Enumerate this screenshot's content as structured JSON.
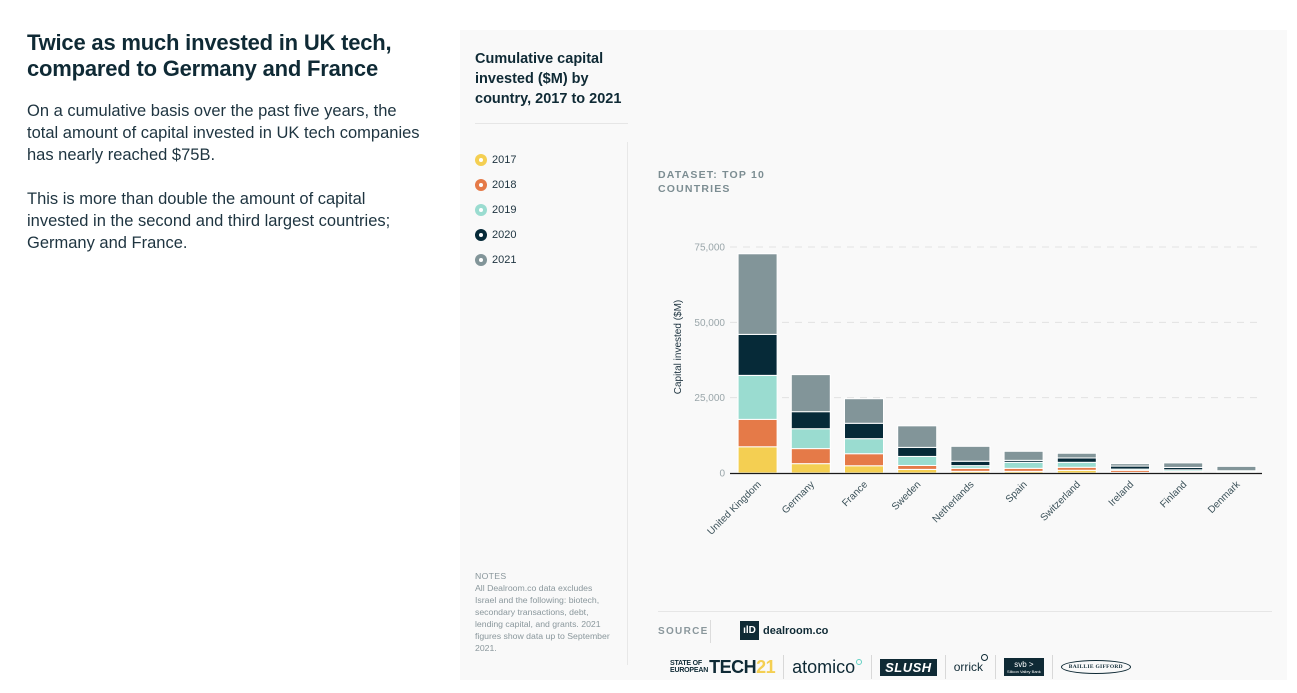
{
  "intro": {
    "headline": "Twice as much invested in UK tech, compared to Germany and France",
    "paragraphs": [
      "On a cumulative basis over the past five years, the total amount of capital invested in UK tech companies has nearly reached $75B.",
      "This is more than double the amount of capital invested in the second and third largest countries; Germany and France."
    ]
  },
  "card": {
    "title": "Cumulative capital invested ($M) by country, 2017 to 2021",
    "dataset_label": "Dataset: Top 10 Countries",
    "notes_heading": "Notes",
    "notes_text": "All Dealroom.co data excludes Israel and the following: biotech, secondary transactions, debt, lending capital, and grants. 2021 figures show data up to September 2021.",
    "source_label": "Source",
    "source_name": "dealroom.co",
    "source_icon": "dealroom-logo-icon",
    "partners": {
      "soet_line1": "STATE OF",
      "soet_line2": "EUROPEAN",
      "soet_tech": "TECH",
      "soet_year": "21",
      "atomico": "atomico",
      "slush": "SLUSH",
      "orrick": "orrick",
      "svb": "svb >",
      "svb_sub": "Silicon Valley Bank",
      "baillie_gifford": "BAILLIE GIFFORD"
    }
  },
  "colors": {
    "2017": "#F4CF52",
    "2018": "#E57A48",
    "2019": "#9ADCD0",
    "2020": "#062A38",
    "2021": "#829599"
  },
  "chart_data": {
    "type": "bar",
    "stacked": true,
    "title": "Cumulative capital invested ($M) by country, 2017 to 2021",
    "xlabel": "",
    "ylabel": "Capital invested ($M)",
    "ylim": [
      0,
      75000
    ],
    "yticks": [
      0,
      25000,
      50000,
      75000
    ],
    "ytick_labels": [
      "0",
      "25,000",
      "50,000",
      "75,000"
    ],
    "grid": "horizontal-dashed",
    "legend": "left",
    "categories": [
      "United Kingdom",
      "Germany",
      "France",
      "Sweden",
      "Netherlands",
      "Spain",
      "Switzerland",
      "Ireland",
      "Finland",
      "Denmark"
    ],
    "series": [
      {
        "name": "2017",
        "values": [
          8700,
          3100,
          2400,
          1200,
          550,
          550,
          900,
          200,
          150,
          150
        ]
      },
      {
        "name": "2018",
        "values": [
          9100,
          5000,
          4000,
          1300,
          1000,
          1000,
          1000,
          700,
          400,
          150
        ]
      },
      {
        "name": "2019",
        "values": [
          14600,
          6600,
          5000,
          3000,
          900,
          2000,
          1650,
          400,
          500,
          350
        ]
      },
      {
        "name": "2020",
        "values": [
          13600,
          5650,
          5100,
          3000,
          1450,
          650,
          1450,
          1000,
          800,
          100
        ]
      },
      {
        "name": "2021",
        "values": [
          26750,
          12300,
          8150,
          7150,
          4950,
          3000,
          1550,
          800,
          1500,
          1450
        ]
      }
    ]
  }
}
